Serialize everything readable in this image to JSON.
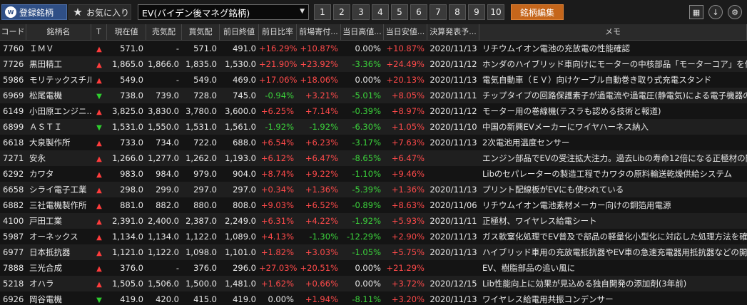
{
  "toolbar": {
    "tabs": [
      {
        "label": "登録銘柄",
        "icon": "app-logo-icon",
        "logo_text": "W"
      },
      {
        "label": "お気に入り",
        "icon": "star-icon"
      }
    ],
    "list_select": {
      "value": "EV(バイデン後マネグ銘柄)"
    },
    "pages": [
      "1",
      "2",
      "3",
      "4",
      "5",
      "6",
      "7",
      "8",
      "9",
      "10"
    ],
    "edit_label": "銘柄編集",
    "tools": [
      "calculator-icon",
      "download-icon",
      "settings-icon"
    ]
  },
  "colors": {
    "up": "#ff4a4a",
    "down": "#3bd23b",
    "tab_active": "#2f4f86",
    "edit_button": "#c5661b"
  },
  "grid": {
    "headers": [
      "コード",
      "銘柄名",
      "T",
      "現在値",
      "売気配",
      "買気配",
      "前日終値",
      "前日比率",
      "前場寄付...",
      "当日高値...",
      "当日安値...",
      "決算発表予...",
      "メモ"
    ],
    "rows": [
      {
        "code": "7760",
        "name": "ＩＭＶ",
        "trend": "up",
        "price": "571.0",
        "ask": "-",
        "bid": "571.0",
        "prev": "491.0",
        "chg": "+16.29%",
        "open": "+10.87%",
        "high": "0.00%",
        "low": "+10.87%",
        "date": "2020/11/13",
        "memo": "リチウムイオン電池の充放電の性能確認"
      },
      {
        "code": "7726",
        "name": "黒田精工",
        "trend": "up",
        "price": "1,865.0",
        "ask": "1,866.0",
        "bid": "1,835.0",
        "prev": "1,530.0",
        "chg": "+21.90%",
        "open": "+23.92%",
        "high": "-3.36%",
        "low": "+24.49%",
        "date": "2020/11/12",
        "memo": "ホンダのハイブリッド車向けにモーターの中核部品「モーターコア」を供給した実績"
      },
      {
        "code": "5986",
        "name": "モリテックスチル",
        "trend": "up",
        "price": "549.0",
        "ask": "-",
        "bid": "549.0",
        "prev": "469.0",
        "chg": "+17.06%",
        "open": "+18.06%",
        "high": "0.00%",
        "low": "+20.13%",
        "date": "2020/11/13",
        "memo": "電気自動車（ＥＶ）向けケーブル自動巻き取り式充電スタンド"
      },
      {
        "code": "6969",
        "name": "松尾電機",
        "trend": "down",
        "price": "738.0",
        "ask": "739.0",
        "bid": "728.0",
        "prev": "745.0",
        "chg": "-0.94%",
        "open": "+3.21%",
        "high": "-5.01%",
        "low": "+8.05%",
        "date": "2020/11/11",
        "memo": "チップタイプの回路保護素子が過電流や過電圧(静電気)による電子機器の発煙発火"
      },
      {
        "code": "6149",
        "name": "小田原エンジニ...",
        "trend": "up",
        "price": "3,825.0",
        "ask": "3,830.0",
        "bid": "3,780.0",
        "prev": "3,600.0",
        "chg": "+6.25%",
        "open": "+7.14%",
        "high": "-0.39%",
        "low": "+8.97%",
        "date": "2020/11/12",
        "memo": "モーター用の巻線機(テスラも認める技術と報道)"
      },
      {
        "code": "6899",
        "name": "ＡＳＴＩ",
        "trend": "down",
        "price": "1,531.0",
        "ask": "1,550.0",
        "bid": "1,531.0",
        "prev": "1,561.0",
        "chg": "-1.92%",
        "open": "-1.92%",
        "high": "-6.30%",
        "low": "+1.05%",
        "date": "2020/11/10",
        "memo": "中国の新興EVメーカーにワイヤハーネス納入"
      },
      {
        "code": "6618",
        "name": "大泉製作所",
        "trend": "up",
        "price": "733.0",
        "ask": "734.0",
        "bid": "722.0",
        "prev": "688.0",
        "chg": "+6.54%",
        "open": "+6.23%",
        "high": "-3.17%",
        "low": "+7.63%",
        "date": "2020/11/13",
        "memo": "2次電池用温度センサー"
      },
      {
        "code": "7271",
        "name": "安永",
        "trend": "up",
        "price": "1,266.0",
        "ask": "1,277.0",
        "bid": "1,262.0",
        "prev": "1,193.0",
        "chg": "+6.12%",
        "open": "+6.47%",
        "high": "-8.65%",
        "low": "+6.47%",
        "date": "",
        "memo": "エンジン部品でEVの受注拡大注力。過去Libの寿命12倍になる正極材の開発も"
      },
      {
        "code": "6292",
        "name": "カワタ",
        "trend": "up",
        "price": "983.0",
        "ask": "984.0",
        "bid": "979.0",
        "prev": "904.0",
        "chg": "+8.74%",
        "open": "+9.22%",
        "high": "-1.10%",
        "low": "+9.46%",
        "date": "",
        "memo": "Libのセパレーターの製造工程でカワタの原料輸送乾燥供給システム"
      },
      {
        "code": "6658",
        "name": "シライ電子工業",
        "trend": "up",
        "price": "298.0",
        "ask": "299.0",
        "bid": "297.0",
        "prev": "297.0",
        "chg": "+0.34%",
        "open": "+1.36%",
        "high": "-5.39%",
        "low": "+1.36%",
        "date": "2020/11/13",
        "memo": "プリント配線板がEVにも使われている"
      },
      {
        "code": "6882",
        "name": "三社電機製作所",
        "trend": "up",
        "price": "881.0",
        "ask": "882.0",
        "bid": "880.0",
        "prev": "808.0",
        "chg": "+9.03%",
        "open": "+6.52%",
        "high": "-0.89%",
        "low": "+8.63%",
        "date": "2020/11/06",
        "memo": "リチウムイオン電池素材メーカー向けの銅箔用電源"
      },
      {
        "code": "4100",
        "name": "戸田工業",
        "trend": "up",
        "price": "2,391.0",
        "ask": "2,400.0",
        "bid": "2,387.0",
        "prev": "2,249.0",
        "chg": "+6.31%",
        "open": "+4.22%",
        "high": "-1.92%",
        "low": "+5.93%",
        "date": "2020/11/11",
        "memo": "正極材、ワイヤレス給電シート"
      },
      {
        "code": "5987",
        "name": "オーネックス",
        "trend": "up",
        "price": "1,134.0",
        "ask": "1,134.0",
        "bid": "1,122.0",
        "prev": "1,089.0",
        "chg": "+4.13%",
        "open": "-1.30%",
        "high": "-12.29%",
        "low": "+2.90%",
        "date": "2020/11/13",
        "memo": "ガス軟窒化処理でEV普及で部品の軽量化小型化に対応した処理方法を確立"
      },
      {
        "code": "6977",
        "name": "日本抵抗器",
        "trend": "up",
        "price": "1,121.0",
        "ask": "1,122.0",
        "bid": "1,098.0",
        "prev": "1,101.0",
        "chg": "+1.82%",
        "open": "+3.03%",
        "high": "-1.05%",
        "low": "+5.75%",
        "date": "2020/11/13",
        "memo": "ハイブリッド車用の充放電抵抗器やEV車の急速充電器用抵抗器などの開発・製造"
      },
      {
        "code": "7888",
        "name": "三光合成",
        "trend": "up",
        "price": "376.0",
        "ask": "-",
        "bid": "376.0",
        "prev": "296.0",
        "chg": "+27.03%",
        "open": "+20.51%",
        "high": "0.00%",
        "low": "+21.29%",
        "date": "",
        "memo": "EV、樹脂部品の追い風に"
      },
      {
        "code": "5218",
        "name": "オハラ",
        "trend": "up",
        "price": "1,505.0",
        "ask": "1,506.0",
        "bid": "1,500.0",
        "prev": "1,481.0",
        "chg": "+1.62%",
        "open": "+0.66%",
        "high": "0.00%",
        "low": "+3.72%",
        "date": "2020/12/15",
        "memo": "Lib性能向上に効果が見込める独自開発の添加剤(3年前)"
      },
      {
        "code": "6926",
        "name": "岡谷電機",
        "trend": "down",
        "price": "419.0",
        "ask": "420.0",
        "bid": "415.0",
        "prev": "419.0",
        "chg": "0.00%",
        "open": "+1.94%",
        "high": "-8.11%",
        "low": "+3.20%",
        "date": "2020/11/13",
        "memo": "ワイヤレス給電用共振コンデンサー"
      }
    ]
  }
}
